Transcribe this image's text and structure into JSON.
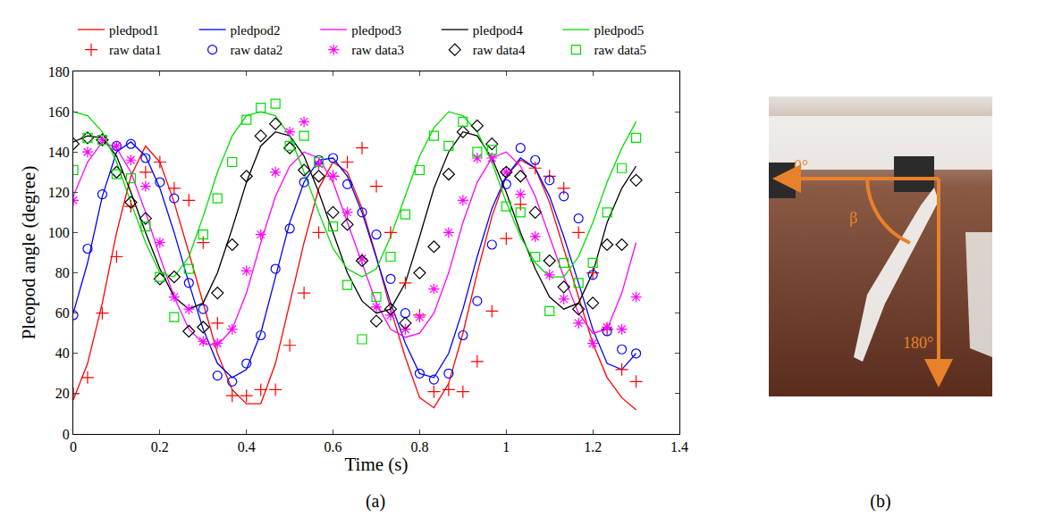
{
  "chart_data": {
    "type": "line",
    "caption": "(a)",
    "x_label": "Time (s)",
    "y_label": "Pleopod angle (degree)",
    "x": [
      0,
      0.033,
      0.067,
      0.1,
      0.133,
      0.167,
      0.2,
      0.233,
      0.267,
      0.3,
      0.333,
      0.367,
      0.4,
      0.433,
      0.467,
      0.5,
      0.533,
      0.567,
      0.6,
      0.633,
      0.667,
      0.7,
      0.733,
      0.767,
      0.8,
      0.833,
      0.867,
      0.9,
      0.933,
      0.967,
      1.0,
      1.033,
      1.067,
      1.1,
      1.133,
      1.167,
      1.2,
      1.233,
      1.267,
      1.3
    ],
    "xlim": [
      0,
      1.4
    ],
    "xticks": [
      0,
      0.2,
      0.4,
      0.6,
      0.8,
      1,
      1.2,
      1.4
    ],
    "ylim": [
      0,
      180
    ],
    "yticks": [
      0,
      20,
      40,
      60,
      80,
      100,
      120,
      140,
      160,
      180
    ],
    "grid": false,
    "legend": "top",
    "series": [
      {
        "name": "pledpod1",
        "type": "line",
        "color": "#ff0000",
        "line_style": "solid",
        "values": [
          17,
          35,
          65,
          100,
          128,
          143,
          135,
          115,
          90,
          65,
          40,
          22,
          15,
          15,
          35,
          65,
          95,
          122,
          135,
          130,
          112,
          88,
          62,
          38,
          18,
          13,
          25,
          50,
          80,
          108,
          128,
          136,
          132,
          115,
          92,
          68,
          45,
          28,
          18,
          12
        ]
      },
      {
        "name": "pledpod2",
        "type": "line",
        "color": "#0000ff",
        "line_style": "solid",
        "values": [
          60,
          85,
          118,
          140,
          145,
          138,
          122,
          100,
          75,
          52,
          35,
          28,
          32,
          50,
          78,
          105,
          125,
          136,
          137,
          128,
          110,
          88,
          65,
          45,
          30,
          28,
          40,
          62,
          88,
          112,
          128,
          137,
          132,
          118,
          98,
          75,
          52,
          35,
          32,
          40
        ]
      },
      {
        "name": "pledpod3",
        "type": "line",
        "color": "#ff00ff",
        "line_style": "solid",
        "values": [
          118,
          135,
          145,
          142,
          130,
          110,
          88,
          68,
          52,
          45,
          44,
          52,
          70,
          95,
          118,
          133,
          140,
          137,
          125,
          105,
          85,
          65,
          52,
          48,
          50,
          60,
          80,
          105,
          125,
          137,
          140,
          133,
          118,
          98,
          78,
          60,
          50,
          52,
          70,
          95
        ]
      },
      {
        "name": "pledpod4",
        "type": "line",
        "color": "#000000",
        "line_style": "solid",
        "values": [
          145,
          148,
          147,
          138,
          120,
          100,
          82,
          68,
          62,
          65,
          80,
          102,
          125,
          143,
          150,
          148,
          138,
          120,
          100,
          80,
          66,
          60,
          62,
          75,
          98,
          122,
          140,
          150,
          148,
          137,
          120,
          100,
          82,
          68,
          62,
          65,
          80,
          105,
          122,
          133
        ]
      },
      {
        "name": "pledpod5",
        "type": "line",
        "color": "#00dd00",
        "line_style": "solid",
        "values": [
          160,
          158,
          150,
          135,
          115,
          95,
          80,
          78,
          88,
          108,
          130,
          148,
          158,
          160,
          158,
          148,
          130,
          110,
          92,
          82,
          78,
          82,
          98,
          118,
          138,
          152,
          160,
          158,
          150,
          135,
          115,
          98,
          85,
          78,
          78,
          88,
          105,
          125,
          142,
          155
        ]
      },
      {
        "name": "raw data1",
        "type": "scatter",
        "color": "#ff0000",
        "marker": "plus",
        "values": [
          20,
          28,
          60,
          88,
          113,
          130,
          135,
          122,
          116,
          95,
          55,
          19,
          19,
          22,
          22,
          44,
          70,
          100,
          128,
          135,
          142,
          123,
          100,
          75,
          59,
          21,
          22,
          21,
          36,
          61,
          97,
          114,
          132,
          128,
          122,
          100,
          80,
          52,
          32,
          26
        ]
      },
      {
        "name": "raw data2",
        "type": "scatter",
        "color": "#0000ff",
        "marker": "circle",
        "values": [
          59,
          92,
          119,
          143,
          144,
          137,
          125,
          117,
          75,
          62,
          29,
          26,
          35,
          49,
          82,
          102,
          125,
          136,
          137,
          124,
          110,
          99,
          77,
          60,
          30,
          27,
          30,
          49,
          66,
          94,
          124,
          142,
          136,
          126,
          118,
          107,
          79,
          51,
          42,
          40
        ]
      },
      {
        "name": "raw data3",
        "type": "scatter",
        "color": "#ff00ff",
        "marker": "asterisk",
        "values": [
          116,
          140,
          146,
          143,
          136,
          123,
          95,
          68,
          62,
          46,
          45,
          52,
          81,
          99,
          130,
          150,
          155,
          134,
          128,
          110,
          87,
          63,
          59,
          52,
          58,
          72,
          100,
          116,
          137,
          137,
          130,
          119,
          98,
          79,
          67,
          55,
          45,
          53,
          52,
          68
        ]
      },
      {
        "name": "raw data4",
        "type": "scatter",
        "color": "#000000",
        "marker": "diamond",
        "values": [
          144,
          147,
          146,
          130,
          115,
          107,
          77,
          78,
          51,
          53,
          70,
          94,
          128,
          148,
          154,
          142,
          131,
          128,
          110,
          104,
          86,
          56,
          62,
          55,
          80,
          93,
          129,
          150,
          153,
          144,
          130,
          128,
          110,
          86,
          73,
          62,
          65,
          94,
          94,
          126
        ]
      },
      {
        "name": "raw data5",
        "type": "scatter",
        "color": "#00dd00",
        "marker": "square",
        "values": [
          131,
          147,
          146,
          129,
          127,
          103,
          78,
          58,
          82,
          99,
          117,
          135,
          156,
          162,
          164,
          143,
          148,
          135,
          103,
          74,
          47,
          68,
          88,
          109,
          131,
          148,
          143,
          155,
          140,
          141,
          113,
          110,
          88,
          61,
          85,
          75,
          85,
          110,
          132,
          147
        ]
      }
    ]
  },
  "panel_b": {
    "caption": "(b)",
    "labels": [
      "0°",
      "β",
      "180°"
    ]
  }
}
